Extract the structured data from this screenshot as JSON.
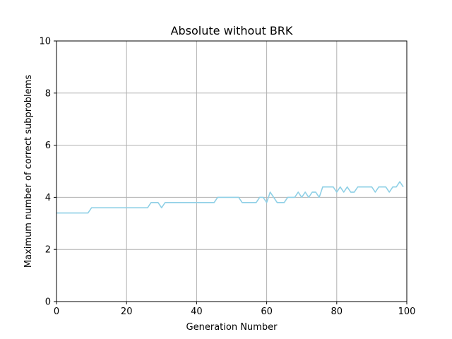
{
  "chart_data": {
    "type": "line",
    "title": "Absolute without BRK",
    "xlabel": "Generation Number",
    "ylabel": "Maximum number of correct subproblems",
    "xlim": [
      0,
      100
    ],
    "ylim": [
      0,
      10
    ],
    "xticks": [
      0,
      20,
      40,
      60,
      80,
      100
    ],
    "yticks": [
      0,
      2,
      4,
      6,
      8,
      10
    ],
    "grid": true,
    "series": [
      {
        "color": "#8fd0e6",
        "x": [
          0,
          1,
          2,
          3,
          4,
          5,
          6,
          7,
          8,
          9,
          10,
          11,
          12,
          13,
          14,
          15,
          16,
          17,
          18,
          19,
          20,
          21,
          22,
          23,
          24,
          25,
          26,
          27,
          28,
          29,
          30,
          31,
          32,
          33,
          34,
          35,
          36,
          37,
          38,
          39,
          40,
          41,
          42,
          43,
          44,
          45,
          46,
          47,
          48,
          49,
          50,
          51,
          52,
          53,
          54,
          55,
          56,
          57,
          58,
          59,
          60,
          61,
          62,
          63,
          64,
          65,
          66,
          67,
          68,
          69,
          70,
          71,
          72,
          73,
          74,
          75,
          76,
          77,
          78,
          79,
          80,
          81,
          82,
          83,
          84,
          85,
          86,
          87,
          88,
          89,
          90,
          91,
          92,
          93,
          94,
          95,
          96,
          97,
          98,
          99
        ],
        "y": [
          3.4,
          3.4,
          3.4,
          3.4,
          3.4,
          3.4,
          3.4,
          3.4,
          3.4,
          3.4,
          3.6,
          3.6,
          3.6,
          3.6,
          3.6,
          3.6,
          3.6,
          3.6,
          3.6,
          3.6,
          3.6,
          3.6,
          3.6,
          3.6,
          3.6,
          3.6,
          3.6,
          3.8,
          3.8,
          3.8,
          3.6,
          3.8,
          3.8,
          3.8,
          3.8,
          3.8,
          3.8,
          3.8,
          3.8,
          3.8,
          3.8,
          3.8,
          3.8,
          3.8,
          3.8,
          3.8,
          4.0,
          4.0,
          4.0,
          4.0,
          4.0,
          4.0,
          4.0,
          3.8,
          3.8,
          3.8,
          3.8,
          3.8,
          4.0,
          4.0,
          3.8,
          4.2,
          4.0,
          3.8,
          3.8,
          3.8,
          4.0,
          4.0,
          4.0,
          4.2,
          4.0,
          4.2,
          4.0,
          4.2,
          4.2,
          4.0,
          4.4,
          4.4,
          4.4,
          4.4,
          4.2,
          4.4,
          4.2,
          4.4,
          4.2,
          4.2,
          4.4,
          4.4,
          4.4,
          4.4,
          4.4,
          4.2,
          4.4,
          4.4,
          4.4,
          4.2,
          4.4,
          4.4,
          4.6,
          4.4
        ]
      }
    ]
  }
}
